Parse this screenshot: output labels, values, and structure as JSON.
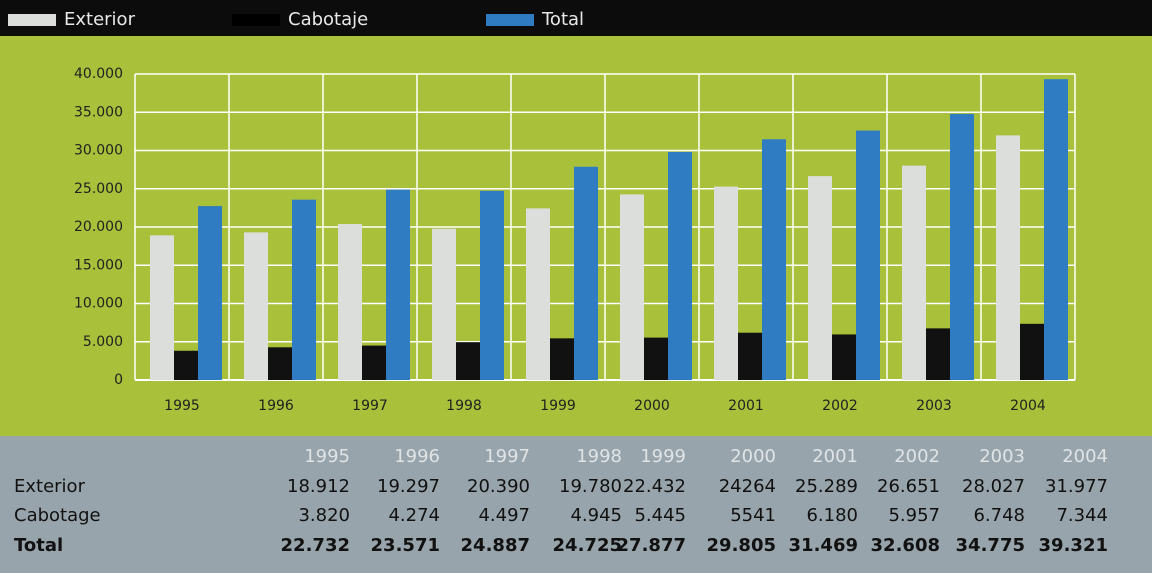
{
  "chart_data": {
    "type": "bar",
    "categories": [
      "1995",
      "1996",
      "1997",
      "1998",
      "1999",
      "2000",
      "2001",
      "2002",
      "2003",
      "2004"
    ],
    "series": [
      {
        "name": "Exterior",
        "color": "#dcdedb",
        "values": [
          18912,
          19297,
          20390,
          19780,
          22432,
          24264,
          25289,
          26651,
          28027,
          31977
        ],
        "value_labels": [
          "18.912",
          "19.297",
          "20.390",
          "19.780",
          "22.432",
          "24264",
          "25.289",
          "26.651",
          "28.027",
          "31.977"
        ]
      },
      {
        "name": "Cabotaje",
        "color": "#111111",
        "values": [
          3820,
          4274,
          4497,
          4945,
          5445,
          5541,
          6180,
          5957,
          6748,
          7344
        ],
        "value_labels": [
          "3.820",
          "4.274",
          "4.497",
          "4.945",
          "5.445",
          "5541",
          "6.180",
          "5.957",
          "6.748",
          "7.344"
        ]
      },
      {
        "name": "Total",
        "color": "#2f7cc3",
        "values": [
          22732,
          23571,
          24887,
          24725,
          27877,
          29805,
          31469,
          32608,
          34775,
          39321
        ],
        "value_labels": [
          "22.732",
          "23.571",
          "24.887",
          "24.725",
          "27.877",
          "29.805",
          "31.469",
          "32.608",
          "34.775",
          "39.321"
        ]
      }
    ],
    "ylim": [
      0,
      40000
    ],
    "yticks": [
      0,
      {
        "value": 5000,
        "label": "5.000"
      },
      {
        "value": 10000,
        "label": "10.000"
      },
      {
        "value": 15000,
        "label": "15.000"
      },
      {
        "value": 20000,
        "label": "20.000"
      },
      {
        "value": 25000,
        "label": "25.000"
      },
      {
        "value": 30000,
        "label": "30.000"
      },
      {
        "value": 35000,
        "label": "35.000"
      },
      {
        "value": 40000,
        "label": "40.000"
      }
    ],
    "grid": true,
    "legend": "top-left"
  },
  "table": {
    "row_labels": [
      "Exterior",
      "Cabotage",
      "Total"
    ]
  }
}
